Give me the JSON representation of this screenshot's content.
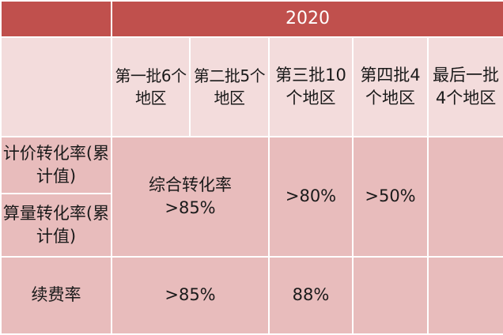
{
  "table": {
    "year": "2020",
    "columns": [
      "第一批6个地区",
      "第二批5个地区",
      "第三批10个地区",
      "第四批4个地区",
      "最后一批4个地区"
    ],
    "rows": {
      "pricing_rate": "计价转化率(累计值)",
      "volume_rate": "算量转化率(累计值)",
      "renewal_rate": "续费率"
    },
    "values": {
      "combined_label": "综合转化率",
      "combined_value": ">85%",
      "batch3_conversion": ">80%",
      "batch4_conversion": ">50%",
      "renewal_batch1_2": ">85%",
      "renewal_batch3": "88%"
    }
  }
}
